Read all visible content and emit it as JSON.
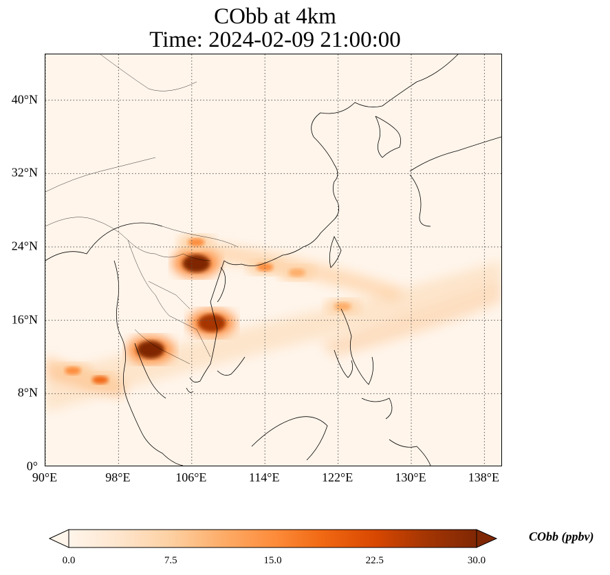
{
  "title": {
    "line1": "CObb at 4km",
    "line2": "Time: 2024-02-09 21:00:00"
  },
  "map": {
    "lon_range": [
      90,
      140
    ],
    "lat_range": [
      0,
      45
    ],
    "lat_ticks": [
      {
        "value": 0,
        "label": "0°"
      },
      {
        "value": 8,
        "label": "8°N"
      },
      {
        "value": 16,
        "label": "16°N"
      },
      {
        "value": 24,
        "label": "24°N"
      },
      {
        "value": 32,
        "label": "32°N"
      },
      {
        "value": 40,
        "label": "40°N"
      }
    ],
    "lon_ticks": [
      {
        "value": 90,
        "label": "90°E"
      },
      {
        "value": 98,
        "label": "98°E"
      },
      {
        "value": 106,
        "label": "106°E"
      },
      {
        "value": 114,
        "label": "114°E"
      },
      {
        "value": 122,
        "label": "122°E"
      },
      {
        "value": 130,
        "label": "130°E"
      },
      {
        "value": 138,
        "label": "138°E"
      }
    ],
    "gridlines": true,
    "hotspots": [
      {
        "lon": 106.5,
        "lat": 22.2,
        "level": 30
      },
      {
        "lon": 101.5,
        "lat": 12.8,
        "level": 30
      },
      {
        "lon": 108.2,
        "lat": 15.7,
        "level": 25
      },
      {
        "lon": 106.5,
        "lat": 24.5,
        "level": 15
      },
      {
        "lon": 114,
        "lat": 21.8,
        "level": 14
      },
      {
        "lon": 117.5,
        "lat": 21.2,
        "level": 11
      },
      {
        "lon": 122.5,
        "lat": 17.5,
        "level": 12
      },
      {
        "lon": 93,
        "lat": 10.5,
        "level": 15
      },
      {
        "lon": 96,
        "lat": 9.5,
        "level": 17
      }
    ]
  },
  "colorbar": {
    "label": "CObb (ppbv)",
    "min": 0,
    "max": 30,
    "ticks": [
      "0.0",
      "7.5",
      "15.0",
      "22.5",
      "30.0"
    ],
    "colors": [
      "#fff5eb",
      "#fee6ce",
      "#fdd0a2",
      "#fdae6b",
      "#fd8d3c",
      "#f16913",
      "#d94801",
      "#a63603",
      "#7f2704"
    ]
  }
}
